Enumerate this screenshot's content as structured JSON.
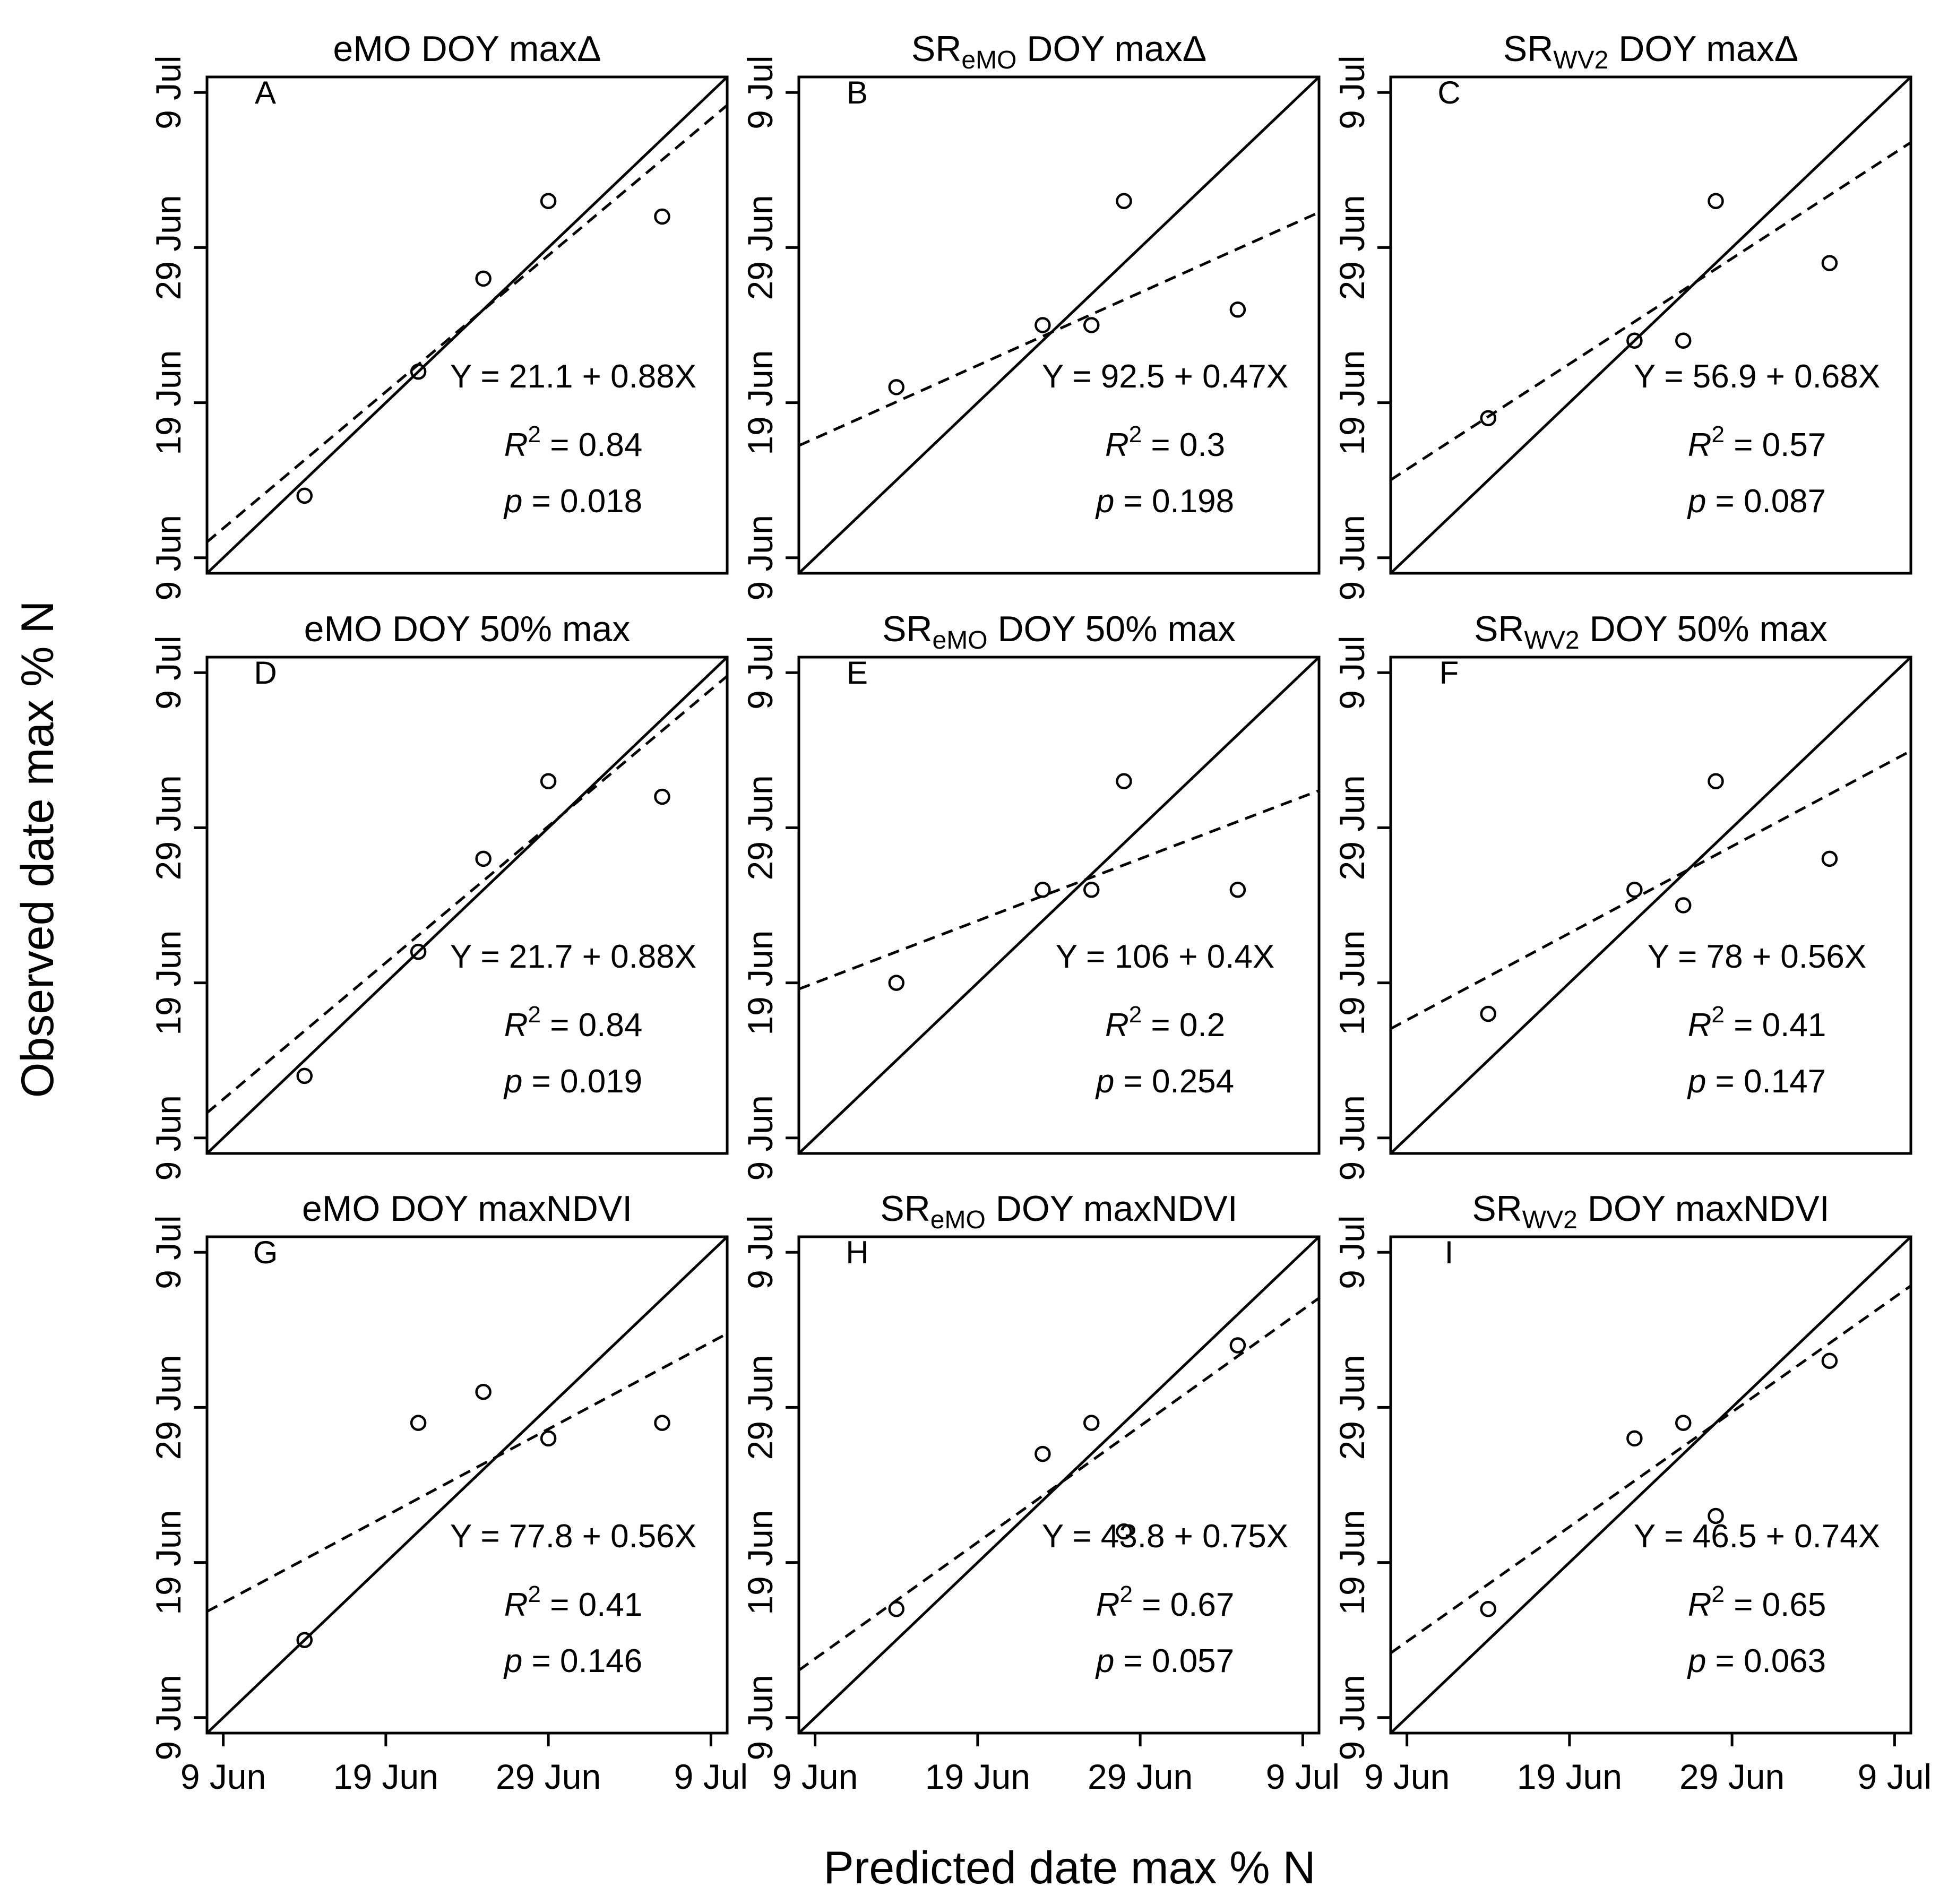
{
  "figure": {
    "xlabel": "Predicted date max % N",
    "ylabel": "Observed date max % N",
    "xticks": [
      "9 Jun",
      "19 Jun",
      "29 Jun",
      "9 Jul"
    ],
    "yticks": [
      "9 Jun",
      "19 Jun",
      "29 Jun",
      "9 Jul"
    ]
  },
  "colors": {
    "ink": "#000000",
    "background": "#ffffff"
  },
  "chart_data": [
    {
      "type": "scatter",
      "label": "A",
      "title": "eMO DOY maxΔ",
      "title_main": "eMO",
      "title_sub": "",
      "title_rest": " DOY maxΔ",
      "x_doy": [
        165,
        172,
        176,
        180,
        187
      ],
      "y_doy": [
        164,
        172,
        178,
        183,
        182
      ],
      "intercept": 21.1,
      "slope": 0.88,
      "equation": "Y = 21.1 + 0.88X",
      "r2": "0.84",
      "p": "0.018",
      "reference_line": "1:1 (solid)",
      "fit_line": "linear regression (dashed)",
      "xlim_doy": [
        159,
        191
      ],
      "ylim_doy": [
        159,
        191
      ]
    },
    {
      "type": "scatter",
      "label": "B",
      "title": "SReMO DOY maxΔ",
      "title_main": "SR",
      "title_sub": "eMO",
      "title_rest": " DOY maxΔ",
      "x_doy": [
        165,
        174,
        177,
        179,
        186
      ],
      "y_doy": [
        171,
        175,
        175,
        183,
        176
      ],
      "intercept": 92.5,
      "slope": 0.47,
      "equation": "Y = 92.5 + 0.47X",
      "r2": "0.3",
      "p": "0.198",
      "reference_line": "1:1 (solid)",
      "fit_line": "linear regression (dashed)",
      "xlim_doy": [
        159,
        191
      ],
      "ylim_doy": [
        159,
        191
      ]
    },
    {
      "type": "scatter",
      "label": "C",
      "title": "SRWV2 DOY maxΔ",
      "title_main": "SR",
      "title_sub": "WV2",
      "title_rest": " DOY maxΔ",
      "x_doy": [
        165,
        174,
        177,
        179,
        186
      ],
      "y_doy": [
        169,
        174,
        174,
        183,
        179
      ],
      "intercept": 56.9,
      "slope": 0.68,
      "equation": "Y = 56.9 + 0.68X",
      "r2": "0.57",
      "p": "0.087",
      "reference_line": "1:1 (solid)",
      "fit_line": "linear regression (dashed)",
      "xlim_doy": [
        159,
        191
      ],
      "ylim_doy": [
        159,
        191
      ]
    },
    {
      "type": "scatter",
      "label": "D",
      "title": "eMO DOY 50% max",
      "title_main": "eMO",
      "title_sub": "",
      "title_rest": " DOY 50% max",
      "x_doy": [
        165,
        172,
        176,
        180,
        187
      ],
      "y_doy": [
        164,
        172,
        178,
        183,
        182
      ],
      "intercept": 21.7,
      "slope": 0.88,
      "equation": "Y = 21.7 + 0.88X",
      "r2": "0.84",
      "p": "0.019",
      "reference_line": "1:1 (solid)",
      "fit_line": "linear regression (dashed)",
      "xlim_doy": [
        159,
        191
      ],
      "ylim_doy": [
        159,
        191
      ]
    },
    {
      "type": "scatter",
      "label": "E",
      "title": "SReMO DOY 50% max",
      "title_main": "SR",
      "title_sub": "eMO",
      "title_rest": " DOY 50% max",
      "x_doy": [
        165,
        174,
        177,
        179,
        186
      ],
      "y_doy": [
        170,
        176,
        176,
        183,
        176
      ],
      "intercept": 106,
      "slope": 0.4,
      "equation": "Y = 106 + 0.4X",
      "r2": "0.2",
      "p": "0.254",
      "reference_line": "1:1 (solid)",
      "fit_line": "linear regression (dashed)",
      "xlim_doy": [
        159,
        191
      ],
      "ylim_doy": [
        159,
        191
      ]
    },
    {
      "type": "scatter",
      "label": "F",
      "title": "SRWV2 DOY 50% max",
      "title_main": "SR",
      "title_sub": "WV2",
      "title_rest": " DOY 50% max",
      "x_doy": [
        165,
        174,
        177,
        179,
        186
      ],
      "y_doy": [
        168,
        176,
        175,
        183,
        178
      ],
      "intercept": 78,
      "slope": 0.56,
      "equation": "Y = 78 + 0.56X",
      "r2": "0.41",
      "p": "0.147",
      "reference_line": "1:1 (solid)",
      "fit_line": "linear regression (dashed)",
      "xlim_doy": [
        159,
        191
      ],
      "ylim_doy": [
        159,
        191
      ]
    },
    {
      "type": "scatter",
      "label": "G",
      "title": "eMO DOY maxNDVI",
      "title_main": "eMO",
      "title_sub": "",
      "title_rest": " DOY maxNDVI",
      "x_doy": [
        165,
        172,
        176,
        180,
        187
      ],
      "y_doy": [
        165,
        179,
        181,
        178,
        179
      ],
      "intercept": 77.8,
      "slope": 0.56,
      "equation": "Y = 77.8 + 0.56X",
      "r2": "0.41",
      "p": "0.146",
      "reference_line": "1:1 (solid)",
      "fit_line": "linear regression (dashed)",
      "xlim_doy": [
        159,
        191
      ],
      "ylim_doy": [
        159,
        191
      ]
    },
    {
      "type": "scatter",
      "label": "H",
      "title": "SReMO DOY maxNDVI",
      "title_main": "SR",
      "title_sub": "eMO",
      "title_rest": " DOY maxNDVI",
      "x_doy": [
        165,
        174,
        177,
        179,
        186
      ],
      "y_doy": [
        167,
        177,
        179,
        172,
        184
      ],
      "intercept": 43.8,
      "slope": 0.75,
      "equation": "Y = 43.8 + 0.75X",
      "r2": "0.67",
      "p": "0.057",
      "reference_line": "1:1 (solid)",
      "fit_line": "linear regression (dashed)",
      "xlim_doy": [
        159,
        191
      ],
      "ylim_doy": [
        159,
        191
      ]
    },
    {
      "type": "scatter",
      "label": "I",
      "title": "SRWV2 DOY maxNDVI",
      "title_main": "SR",
      "title_sub": "WV2",
      "title_rest": " DOY maxNDVI",
      "x_doy": [
        165,
        174,
        177,
        179,
        186
      ],
      "y_doy": [
        167,
        178,
        179,
        173,
        183
      ],
      "intercept": 46.5,
      "slope": 0.74,
      "equation": "Y = 46.5 + 0.74X",
      "r2": "0.65",
      "p": "0.063",
      "reference_line": "1:1 (solid)",
      "fit_line": "linear regression (dashed)",
      "xlim_doy": [
        159,
        191
      ],
      "ylim_doy": [
        159,
        191
      ]
    }
  ]
}
